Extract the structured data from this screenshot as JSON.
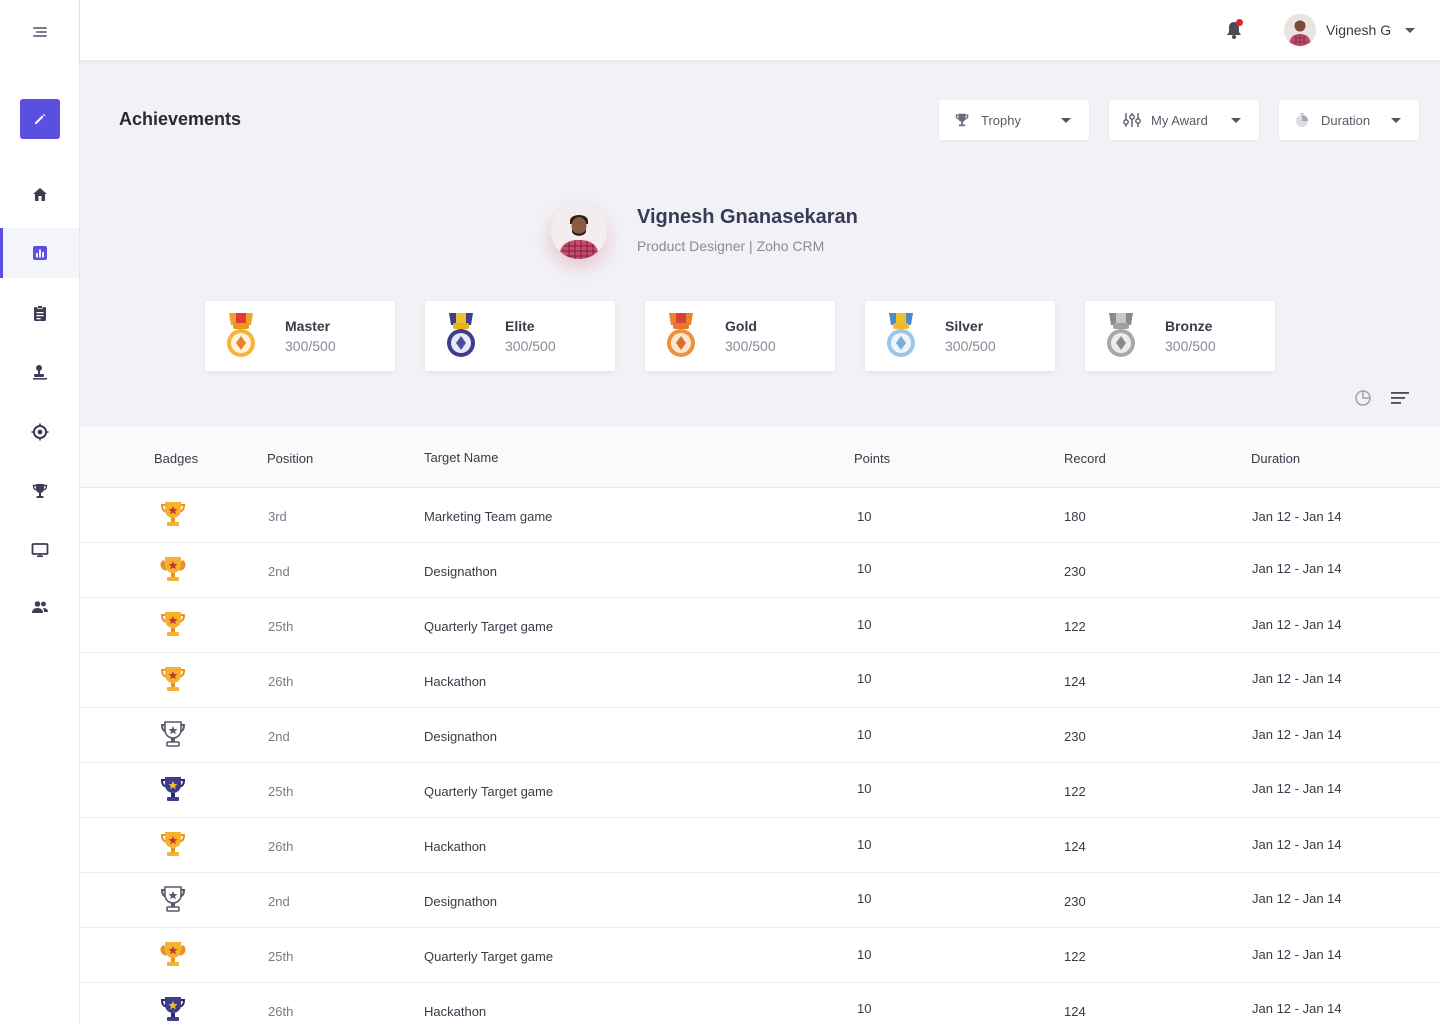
{
  "header": {
    "user_name": "Vignesh G"
  },
  "page": {
    "title": "Achievements"
  },
  "filters": [
    {
      "label": "Trophy",
      "icon": "trophy-icon"
    },
    {
      "label": "My Award",
      "icon": "sliders-icon"
    },
    {
      "label": "Duration",
      "icon": "timer-icon"
    }
  ],
  "profile": {
    "name": "Vignesh Gnanasekaran",
    "role": "Product Designer | Zoho CRM"
  },
  "medals": [
    {
      "name": "Master",
      "score": "300/500",
      "color": "#f0a02c"
    },
    {
      "name": "Elite",
      "score": "300/500",
      "color": "#4b4ba8"
    },
    {
      "name": "Gold",
      "score": "300/500",
      "color": "#e8822c"
    },
    {
      "name": "Silver",
      "score": "300/500",
      "color": "#8ab8dc"
    },
    {
      "name": "Bronze",
      "score": "300/500",
      "color": "#9a9a9a"
    }
  ],
  "table": {
    "headers": {
      "badges": "Badges",
      "position": "Position",
      "target": "Target Name",
      "points": "Points",
      "record": "Record",
      "duration": "Duration"
    },
    "rows": [
      {
        "badge": "gold",
        "position": "3rd",
        "target": "Marketing Team game",
        "points": "10",
        "record": "180",
        "duration": "Jan 12 - Jan 14"
      },
      {
        "badge": "gold-wing",
        "position": "2nd",
        "target": "Designathon",
        "points": "10",
        "record": "230",
        "duration": "Jan 12 - Jan 14"
      },
      {
        "badge": "gold",
        "position": "25th",
        "target": "Quarterly Target game",
        "points": "10",
        "record": "122",
        "duration": "Jan 12 - Jan 14"
      },
      {
        "badge": "gold",
        "position": "26th",
        "target": "Hackathon",
        "points": "10",
        "record": "124",
        "duration": "Jan 12 - Jan 14"
      },
      {
        "badge": "silver",
        "position": "2nd",
        "target": "Designathon",
        "points": "10",
        "record": "230",
        "duration": "Jan 12 - Jan 14"
      },
      {
        "badge": "navy",
        "position": "25th",
        "target": "Quarterly Target game",
        "points": "10",
        "record": "122",
        "duration": "Jan 12 - Jan 14"
      },
      {
        "badge": "gold",
        "position": "26th",
        "target": "Hackathon",
        "points": "10",
        "record": "124",
        "duration": "Jan 12 - Jan 14"
      },
      {
        "badge": "silver",
        "position": "2nd",
        "target": "Designathon",
        "points": "10",
        "record": "230",
        "duration": "Jan 12 - Jan 14"
      },
      {
        "badge": "gold-wing",
        "position": "25th",
        "target": "Quarterly Target game",
        "points": "10",
        "record": "122",
        "duration": "Jan 12 - Jan 14"
      },
      {
        "badge": "navy",
        "position": "26th",
        "target": "Hackathon",
        "points": "10",
        "record": "124",
        "duration": "Jan 12 - Jan 14"
      }
    ]
  },
  "sidebar": {
    "items": [
      "home-icon",
      "chart-icon",
      "clipboard-icon",
      "user-stamp-icon",
      "target-icon",
      "trophy-icon",
      "monitor-icon",
      "team-icon"
    ],
    "active_index": 1,
    "accent": "#5a4fe0"
  }
}
